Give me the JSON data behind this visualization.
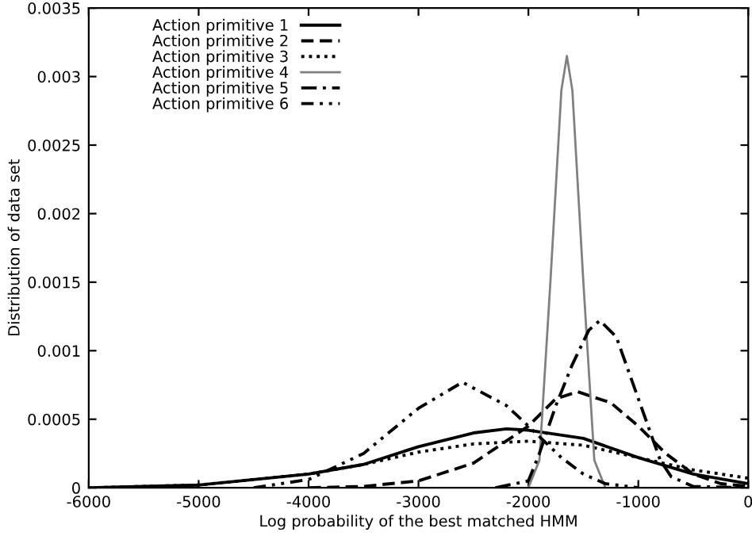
{
  "chart_data": {
    "type": "line",
    "xlabel": "Log probability of the best matched HMM",
    "ylabel": "Distribution of data set",
    "xlim": [
      -6000,
      0
    ],
    "ylim": [
      0,
      0.0035
    ],
    "xticks": [
      -6000,
      -5000,
      -4000,
      -3000,
      -2000,
      -1000,
      0
    ],
    "yticks": [
      0,
      0.0005,
      0.001,
      0.0015,
      0.002,
      0.0025,
      0.003,
      0.0035
    ],
    "legend": "top left",
    "grid": false,
    "series": [
      {
        "name": "Action primitive 1",
        "color": "#000000",
        "line_style": "solid",
        "x": [
          -6000,
          -5000,
          -4000,
          -3500,
          -3000,
          -2500,
          -2200,
          -2000,
          -1500,
          -1000,
          -500,
          0
        ],
        "values": [
          0,
          2e-05,
          0.0001,
          0.00017,
          0.0003,
          0.0004,
          0.00043,
          0.00042,
          0.00036,
          0.00022,
          0.0001,
          3e-05
        ]
      },
      {
        "name": "Action primitive 2",
        "color": "#000000",
        "line_style": "dashed",
        "x": [
          -4000,
          -3500,
          -3000,
          -2500,
          -2000,
          -1750,
          -1550,
          -1250,
          -1000,
          -750,
          -500,
          -250,
          0
        ],
        "values": [
          0,
          1e-05,
          5e-05,
          0.00018,
          0.00045,
          0.00065,
          0.0007,
          0.00062,
          0.00045,
          0.00025,
          0.0001,
          3e-05,
          1e-05
        ]
      },
      {
        "name": "Action primitive 3",
        "color": "#000000",
        "line_style": "dotted",
        "x": [
          -6000,
          -5000,
          -4000,
          -3500,
          -3000,
          -2500,
          -2000,
          -1500,
          -1000,
          -500,
          0
        ],
        "values": [
          0,
          2e-05,
          0.0001,
          0.00017,
          0.00026,
          0.00032,
          0.00034,
          0.00031,
          0.00022,
          0.00013,
          7e-05
        ]
      },
      {
        "name": "Action primitive 4",
        "color": "#808080",
        "line_style": "solid",
        "x": [
          -2000,
          -1900,
          -1800,
          -1700,
          -1650,
          -1600,
          -1500,
          -1400,
          -1300
        ],
        "values": [
          0,
          0.0002,
          0.0015,
          0.0029,
          0.00315,
          0.0029,
          0.0015,
          0.0002,
          0
        ]
      },
      {
        "name": "Action primitive 5",
        "color": "#000000",
        "line_style": "dashdot",
        "x": [
          -2300,
          -2000,
          -1900,
          -1750,
          -1600,
          -1450,
          -1350,
          -1200,
          -1000,
          -800,
          -700,
          -500,
          0
        ],
        "values": [
          0,
          5e-05,
          0.00025,
          0.0006,
          0.0009,
          0.00115,
          0.00122,
          0.0011,
          0.00065,
          0.0002,
          8e-05,
          1e-05,
          0
        ]
      },
      {
        "name": "Action primitive 6",
        "color": "#000000",
        "line_style": "dashdotdot",
        "x": [
          -4500,
          -4000,
          -3500,
          -3000,
          -2600,
          -2200,
          -2000,
          -1700,
          -1500,
          -1300,
          -1000
        ],
        "values": [
          0,
          6e-05,
          0.00025,
          0.00058,
          0.00077,
          0.0006,
          0.00045,
          0.00022,
          0.0001,
          3e-05,
          0
        ]
      }
    ]
  }
}
